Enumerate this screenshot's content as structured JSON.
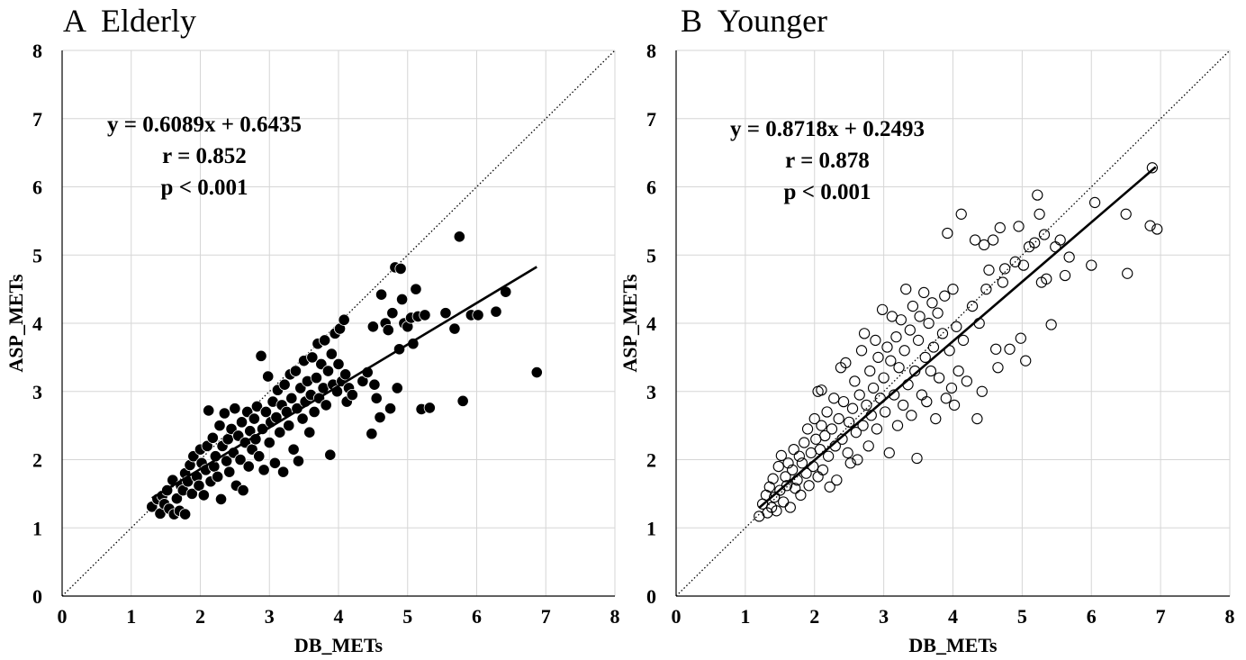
{
  "chart_data": [
    {
      "type": "scatter",
      "panel_letter": "A",
      "title": "Elderly",
      "xlabel": "DB_METs",
      "ylabel": "ASP_METs",
      "xlim": [
        0,
        8
      ],
      "ylim": [
        0,
        8
      ],
      "xticks": [
        0,
        1,
        2,
        3,
        4,
        5,
        6,
        7,
        8
      ],
      "yticks": [
        0,
        1,
        2,
        3,
        4,
        5,
        6,
        7,
        8
      ],
      "grid": true,
      "marker": "filled-circle",
      "identity_line": true,
      "regression": {
        "slope": 0.6089,
        "intercept": 0.6435,
        "x_range": [
          1.3,
          6.87
        ]
      },
      "annotations": [
        "y = 0.6089x + 0.6435",
        "r = 0.852",
        "p < 0.001"
      ],
      "points": [
        [
          1.3,
          1.31
        ],
        [
          1.38,
          1.42
        ],
        [
          1.42,
          1.21
        ],
        [
          1.45,
          1.47
        ],
        [
          1.48,
          1.35
        ],
        [
          1.52,
          1.55
        ],
        [
          1.55,
          1.28
        ],
        [
          1.6,
          1.7
        ],
        [
          1.62,
          1.2
        ],
        [
          1.66,
          1.43
        ],
        [
          1.7,
          1.25
        ],
        [
          1.72,
          1.62
        ],
        [
          1.75,
          1.55
        ],
        [
          1.78,
          1.2
        ],
        [
          1.78,
          1.8
        ],
        [
          1.82,
          1.68
        ],
        [
          1.85,
          1.92
        ],
        [
          1.88,
          1.5
        ],
        [
          1.9,
          2.05
        ],
        [
          1.95,
          1.75
        ],
        [
          1.98,
          1.62
        ],
        [
          2.0,
          2.15
        ],
        [
          2.02,
          1.95
        ],
        [
          2.05,
          1.48
        ],
        [
          2.08,
          1.85
        ],
        [
          2.1,
          2.2
        ],
        [
          2.12,
          2.72
        ],
        [
          2.15,
          1.68
        ],
        [
          2.18,
          2.32
        ],
        [
          2.2,
          1.9
        ],
        [
          2.22,
          2.05
        ],
        [
          2.25,
          1.75
        ],
        [
          2.28,
          2.5
        ],
        [
          2.3,
          1.42
        ],
        [
          2.32,
          2.2
        ],
        [
          2.35,
          2.68
        ],
        [
          2.38,
          1.98
        ],
        [
          2.4,
          2.3
        ],
        [
          2.42,
          1.82
        ],
        [
          2.45,
          2.45
        ],
        [
          2.48,
          2.1
        ],
        [
          2.5,
          2.75
        ],
        [
          2.52,
          1.62
        ],
        [
          2.55,
          2.35
        ],
        [
          2.58,
          2.0
        ],
        [
          2.6,
          2.55
        ],
        [
          2.62,
          1.55
        ],
        [
          2.65,
          2.25
        ],
        [
          2.68,
          2.7
        ],
        [
          2.7,
          1.9
        ],
        [
          2.72,
          2.42
        ],
        [
          2.75,
          2.15
        ],
        [
          2.78,
          2.6
        ],
        [
          2.8,
          2.3
        ],
        [
          2.82,
          2.78
        ],
        [
          2.85,
          2.05
        ],
        [
          2.88,
          3.52
        ],
        [
          2.9,
          2.45
        ],
        [
          2.92,
          1.85
        ],
        [
          2.95,
          2.7
        ],
        [
          2.98,
          3.22
        ],
        [
          3.0,
          2.25
        ],
        [
          3.02,
          2.55
        ],
        [
          3.05,
          2.85
        ],
        [
          3.08,
          1.95
        ],
        [
          3.1,
          2.62
        ],
        [
          3.12,
          3.02
        ],
        [
          3.15,
          2.4
        ],
        [
          3.18,
          2.8
        ],
        [
          3.2,
          1.82
        ],
        [
          3.22,
          3.1
        ],
        [
          3.25,
          2.7
        ],
        [
          3.28,
          2.5
        ],
        [
          3.3,
          3.25
        ],
        [
          3.32,
          2.9
        ],
        [
          3.35,
          2.15
        ],
        [
          3.38,
          3.3
        ],
        [
          3.4,
          2.75
        ],
        [
          3.42,
          1.98
        ],
        [
          3.45,
          3.05
        ],
        [
          3.48,
          2.6
        ],
        [
          3.5,
          3.45
        ],
        [
          3.52,
          2.85
        ],
        [
          3.55,
          3.15
        ],
        [
          3.58,
          2.4
        ],
        [
          3.6,
          2.95
        ],
        [
          3.62,
          3.5
        ],
        [
          3.65,
          2.7
        ],
        [
          3.68,
          3.2
        ],
        [
          3.7,
          3.7
        ],
        [
          3.72,
          2.9
        ],
        [
          3.75,
          3.4
        ],
        [
          3.78,
          3.05
        ],
        [
          3.8,
          3.75
        ],
        [
          3.82,
          2.8
        ],
        [
          3.85,
          3.3
        ],
        [
          3.88,
          2.07
        ],
        [
          3.9,
          3.55
        ],
        [
          3.92,
          3.1
        ],
        [
          3.95,
          3.85
        ],
        [
          3.98,
          3.0
        ],
        [
          4.0,
          3.4
        ],
        [
          4.02,
          3.92
        ],
        [
          4.05,
          3.15
        ],
        [
          4.08,
          4.05
        ],
        [
          4.1,
          3.25
        ],
        [
          4.12,
          2.85
        ],
        [
          4.15,
          3.05
        ],
        [
          4.2,
          2.95
        ],
        [
          4.35,
          3.15
        ],
        [
          4.42,
          3.28
        ],
        [
          4.48,
          2.38
        ],
        [
          4.5,
          3.95
        ],
        [
          4.52,
          3.1
        ],
        [
          4.55,
          2.9
        ],
        [
          4.6,
          2.62
        ],
        [
          4.62,
          4.42
        ],
        [
          4.68,
          4.0
        ],
        [
          4.72,
          3.9
        ],
        [
          4.75,
          2.75
        ],
        [
          4.78,
          4.15
        ],
        [
          4.82,
          4.82
        ],
        [
          4.85,
          3.05
        ],
        [
          4.88,
          3.62
        ],
        [
          4.9,
          4.8
        ],
        [
          4.92,
          4.35
        ],
        [
          4.95,
          4.0
        ],
        [
          5.0,
          3.95
        ],
        [
          5.05,
          4.08
        ],
        [
          5.08,
          3.7
        ],
        [
          5.12,
          4.5
        ],
        [
          5.15,
          4.1
        ],
        [
          5.2,
          2.74
        ],
        [
          5.25,
          4.12
        ],
        [
          5.32,
          2.76
        ],
        [
          5.55,
          4.15
        ],
        [
          5.68,
          3.92
        ],
        [
          5.75,
          5.27
        ],
        [
          5.8,
          2.86
        ],
        [
          5.92,
          4.12
        ],
        [
          6.02,
          4.12
        ],
        [
          6.28,
          4.17
        ],
        [
          6.42,
          4.46
        ],
        [
          6.87,
          3.28
        ]
      ]
    },
    {
      "type": "scatter",
      "panel_letter": "B",
      "title": "Younger",
      "xlabel": "DB_METs",
      "ylabel": "ASP_METs",
      "xlim": [
        0,
        8
      ],
      "ylim": [
        0,
        8
      ],
      "xticks": [
        0,
        1,
        2,
        3,
        4,
        5,
        6,
        7,
        8
      ],
      "yticks": [
        0,
        1,
        2,
        3,
        4,
        5,
        6,
        7,
        8
      ],
      "grid": true,
      "marker": "open-circle",
      "identity_line": true,
      "regression": {
        "slope": 0.8718,
        "intercept": 0.2493,
        "x_range": [
          1.2,
          6.93
        ]
      },
      "annotations": [
        "y = 0.8718x + 0.2493",
        "r = 0.878",
        "p < 0.001"
      ],
      "points": [
        [
          1.2,
          1.17
        ],
        [
          1.25,
          1.35
        ],
        [
          1.3,
          1.48
        ],
        [
          1.32,
          1.22
        ],
        [
          1.35,
          1.6
        ],
        [
          1.38,
          1.3
        ],
        [
          1.4,
          1.72
        ],
        [
          1.42,
          1.45
        ],
        [
          1.45,
          1.25
        ],
        [
          1.48,
          1.9
        ],
        [
          1.5,
          1.55
        ],
        [
          1.52,
          2.06
        ],
        [
          1.55,
          1.38
        ],
        [
          1.58,
          1.75
        ],
        [
          1.6,
          1.62
        ],
        [
          1.62,
          1.95
        ],
        [
          1.65,
          1.3
        ],
        [
          1.68,
          1.85
        ],
        [
          1.7,
          2.15
        ],
        [
          1.72,
          1.58
        ],
        [
          1.75,
          1.7
        ],
        [
          1.78,
          2.05
        ],
        [
          1.8,
          1.48
        ],
        [
          1.82,
          1.95
        ],
        [
          1.85,
          2.25
        ],
        [
          1.88,
          1.8
        ],
        [
          1.9,
          2.45
        ],
        [
          1.92,
          1.62
        ],
        [
          1.95,
          2.1
        ],
        [
          1.98,
          1.9
        ],
        [
          2.0,
          2.6
        ],
        [
          2.02,
          2.3
        ],
        [
          2.05,
          1.75
        ],
        [
          2.05,
          3.0
        ],
        [
          2.08,
          2.15
        ],
        [
          2.1,
          2.5
        ],
        [
          2.1,
          3.02
        ],
        [
          2.12,
          1.85
        ],
        [
          2.15,
          2.35
        ],
        [
          2.18,
          2.7
        ],
        [
          2.2,
          2.05
        ],
        [
          2.22,
          1.6
        ],
        [
          2.25,
          2.45
        ],
        [
          2.28,
          2.9
        ],
        [
          2.3,
          2.2
        ],
        [
          2.32,
          1.7
        ],
        [
          2.35,
          2.6
        ],
        [
          2.38,
          3.35
        ],
        [
          2.4,
          2.3
        ],
        [
          2.42,
          2.85
        ],
        [
          2.45,
          3.42
        ],
        [
          2.48,
          2.1
        ],
        [
          2.5,
          2.55
        ],
        [
          2.52,
          1.95
        ],
        [
          2.55,
          2.75
        ],
        [
          2.58,
          3.15
        ],
        [
          2.6,
          2.4
        ],
        [
          2.62,
          2.0
        ],
        [
          2.65,
          2.95
        ],
        [
          2.68,
          3.6
        ],
        [
          2.7,
          2.5
        ],
        [
          2.72,
          3.85
        ],
        [
          2.75,
          2.8
        ],
        [
          2.78,
          2.2
        ],
        [
          2.8,
          3.3
        ],
        [
          2.82,
          2.65
        ],
        [
          2.85,
          3.05
        ],
        [
          2.88,
          3.75
        ],
        [
          2.9,
          2.45
        ],
        [
          2.92,
          3.5
        ],
        [
          2.95,
          2.9
        ],
        [
          2.98,
          4.2
        ],
        [
          3.0,
          3.2
        ],
        [
          3.02,
          2.7
        ],
        [
          3.05,
          3.65
        ],
        [
          3.08,
          2.1
        ],
        [
          3.1,
          3.45
        ],
        [
          3.12,
          4.1
        ],
        [
          3.15,
          2.95
        ],
        [
          3.18,
          3.8
        ],
        [
          3.2,
          2.5
        ],
        [
          3.22,
          3.35
        ],
        [
          3.25,
          4.05
        ],
        [
          3.28,
          2.8
        ],
        [
          3.3,
          3.6
        ],
        [
          3.32,
          4.5
        ],
        [
          3.35,
          3.1
        ],
        [
          3.38,
          3.9
        ],
        [
          3.4,
          2.65
        ],
        [
          3.42,
          4.25
        ],
        [
          3.45,
          3.3
        ],
        [
          3.48,
          2.02
        ],
        [
          3.5,
          3.75
        ],
        [
          3.52,
          4.1
        ],
        [
          3.55,
          2.95
        ],
        [
          3.58,
          4.45
        ],
        [
          3.6,
          3.5
        ],
        [
          3.62,
          2.85
        ],
        [
          3.65,
          4.0
        ],
        [
          3.68,
          3.3
        ],
        [
          3.7,
          4.3
        ],
        [
          3.72,
          3.65
        ],
        [
          3.75,
          2.6
        ],
        [
          3.78,
          4.15
        ],
        [
          3.8,
          3.2
        ],
        [
          3.85,
          3.85
        ],
        [
          3.88,
          4.4
        ],
        [
          3.9,
          2.9
        ],
        [
          3.92,
          5.32
        ],
        [
          3.95,
          3.6
        ],
        [
          3.98,
          3.05
        ],
        [
          4.0,
          4.5
        ],
        [
          4.02,
          2.8
        ],
        [
          4.05,
          3.95
        ],
        [
          4.08,
          3.3
        ],
        [
          4.12,
          5.6
        ],
        [
          4.15,
          3.75
        ],
        [
          4.2,
          3.15
        ],
        [
          4.28,
          4.25
        ],
        [
          4.32,
          5.22
        ],
        [
          4.35,
          2.6
        ],
        [
          4.38,
          4.0
        ],
        [
          4.42,
          3.0
        ],
        [
          4.45,
          5.15
        ],
        [
          4.48,
          4.5
        ],
        [
          4.52,
          4.78
        ],
        [
          4.58,
          5.22
        ],
        [
          4.62,
          3.62
        ],
        [
          4.65,
          3.35
        ],
        [
          4.68,
          5.4
        ],
        [
          4.72,
          4.6
        ],
        [
          4.75,
          4.8
        ],
        [
          4.82,
          3.62
        ],
        [
          4.9,
          4.9
        ],
        [
          4.95,
          5.42
        ],
        [
          4.98,
          3.78
        ],
        [
          5.02,
          4.85
        ],
        [
          5.05,
          3.45
        ],
        [
          5.1,
          5.12
        ],
        [
          5.18,
          5.18
        ],
        [
          5.22,
          5.88
        ],
        [
          5.25,
          5.6
        ],
        [
          5.28,
          4.6
        ],
        [
          5.32,
          5.3
        ],
        [
          5.35,
          4.65
        ],
        [
          5.42,
          3.98
        ],
        [
          5.48,
          5.12
        ],
        [
          5.55,
          5.22
        ],
        [
          5.62,
          4.7
        ],
        [
          5.68,
          4.97
        ],
        [
          6.0,
          4.85
        ],
        [
          6.05,
          5.77
        ],
        [
          6.5,
          5.6
        ],
        [
          6.52,
          4.73
        ],
        [
          6.85,
          5.43
        ],
        [
          6.88,
          6.28
        ],
        [
          6.95,
          5.38
        ]
      ]
    }
  ]
}
